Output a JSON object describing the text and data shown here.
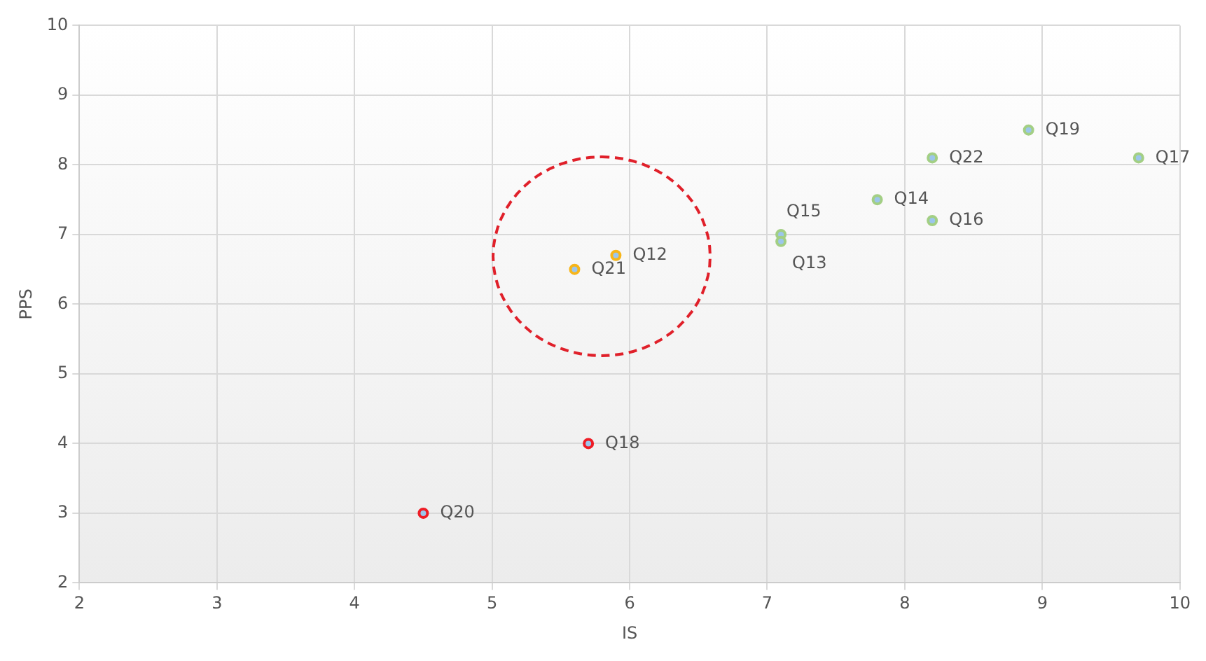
{
  "chart_data": {
    "type": "scatter",
    "xlabel": "IS",
    "ylabel": "PPS",
    "x": [
      4.5,
      5.7,
      5.6,
      5.9,
      7.1,
      7.1,
      7.8,
      8.2,
      8.2,
      8.9,
      9.7
    ],
    "values": [
      3.0,
      4.0,
      6.5,
      6.7,
      7.0,
      6.9,
      7.5,
      7.2,
      8.1,
      8.5,
      8.1
    ],
    "colors": [
      "#ee1c25",
      "#ee1c25",
      "#f7b519",
      "#f7b519",
      "#a3cf84",
      "#a3cf84",
      "#a3cf84",
      "#a3cf84",
      "#a3cf84",
      "#a3cf84",
      "#a3cf84"
    ],
    "annotations": [
      {
        "text": "Q20",
        "x": 4.5,
        "y": 3.0
      },
      {
        "text": "Q18",
        "x": 5.7,
        "y": 4.0
      },
      {
        "text": "Q21",
        "x": 5.6,
        "y": 6.5
      },
      {
        "text": "Q12",
        "x": 5.9,
        "y": 6.7
      },
      {
        "text": "Q15",
        "x": 7.1,
        "y": 7.0
      },
      {
        "text": "Q13",
        "x": 7.1,
        "y": 6.9
      },
      {
        "text": "Q14",
        "x": 7.8,
        "y": 7.5
      },
      {
        "text": "Q16",
        "x": 8.2,
        "y": 7.2
      },
      {
        "text": "Q22",
        "x": 8.2,
        "y": 8.1
      },
      {
        "text": "Q19",
        "x": 8.9,
        "y": 8.5
      },
      {
        "text": "Q17",
        "x": 9.7,
        "y": 8.1
      }
    ],
    "xlim": [
      2,
      10
    ],
    "xticks": [
      2,
      3,
      4,
      5,
      6,
      7,
      8,
      9,
      10
    ],
    "ylim": [
      2,
      10
    ],
    "yticks": [
      2,
      3,
      4,
      5,
      6,
      7,
      8,
      9,
      10
    ],
    "grid": true,
    "marker": "circle",
    "legend": false
  }
}
